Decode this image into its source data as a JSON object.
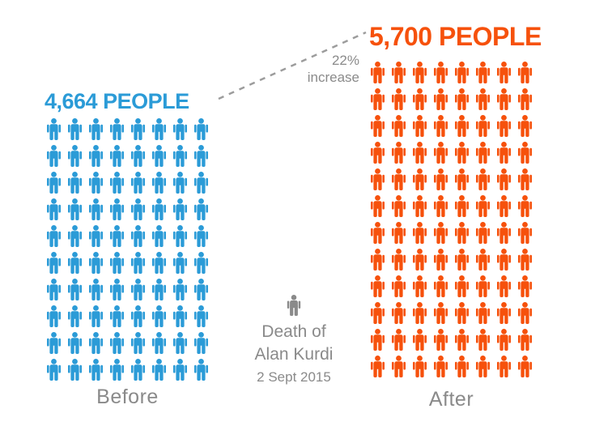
{
  "chart_data": {
    "type": "pictogram",
    "unit": "people",
    "series": [
      {
        "name": "Before",
        "value_label": "4,664 PEOPLE",
        "value": 4664,
        "caption": "Before",
        "color": "#2B9BD7",
        "icon_count": 80,
        "columns": 8,
        "rows": 10
      },
      {
        "name": "After",
        "value_label": "5,700 PEOPLE",
        "value": 5700,
        "caption": "After",
        "color": "#F6510C",
        "icon_count": 96,
        "columns": 8,
        "rows": 12
      }
    ],
    "annotation": {
      "line1": "22%",
      "line2": "increase",
      "value_percent": 22
    },
    "event": {
      "line1": "Death of",
      "line2": "Alan Kurdi",
      "date": "2 Sept 2015"
    },
    "legend_position": "none",
    "grid": false
  },
  "colors": {
    "before": "#2B9BD7",
    "after": "#F6510C",
    "text_gray": "#8A8A8A",
    "dash_gray": "#9C9C9C"
  }
}
